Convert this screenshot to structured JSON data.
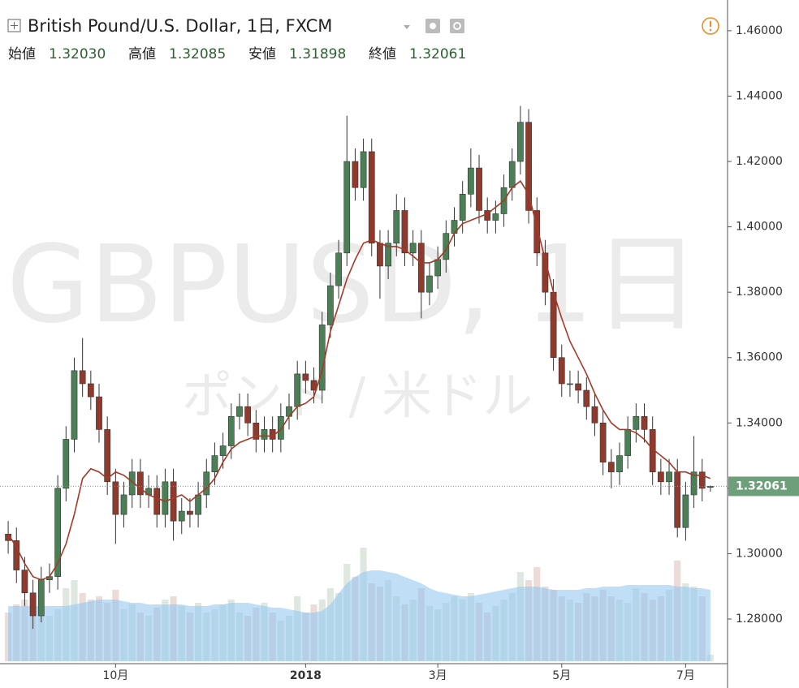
{
  "header": {
    "title": "British Pound/U.S. Dollar, 1日, FXCM",
    "stats": [
      {
        "label": "始値",
        "value": "1.32030"
      },
      {
        "label": "高値",
        "value": "1.32085"
      },
      {
        "label": "安値",
        "value": "1.31898"
      },
      {
        "label": "終値",
        "value": "1.32061"
      }
    ]
  },
  "chart_data": {
    "type": "candlestick",
    "watermark": "GBPUSD, 1日",
    "watermark_sub": "ポンド / 米ドル",
    "up_color": "#4b7f55",
    "down_color": "#8f3a2c",
    "categories": [
      null,
      null,
      null,
      null,
      null,
      null,
      null,
      null,
      null,
      null,
      null,
      null,
      null,
      "10月",
      null,
      null,
      null,
      null,
      null,
      null,
      null,
      null,
      null,
      null,
      null,
      null,
      null,
      null,
      null,
      null,
      null,
      null,
      null,
      null,
      null,
      null,
      "2018",
      null,
      null,
      null,
      null,
      null,
      null,
      null,
      null,
      null,
      null,
      null,
      null,
      null,
      null,
      null,
      "3月",
      null,
      null,
      null,
      null,
      null,
      null,
      null,
      null,
      null,
      null,
      null,
      null,
      null,
      null,
      "5月",
      null,
      null,
      null,
      null,
      null,
      null,
      null,
      null,
      null,
      null,
      null,
      null,
      null,
      null,
      "7月",
      null,
      null,
      null
    ],
    "open": [
      1.306,
      1.304,
      1.295,
      1.288,
      1.281,
      1.292,
      1.293,
      1.32,
      1.335,
      1.356,
      1.352,
      1.348,
      1.338,
      1.322,
      1.312,
      1.318,
      1.325,
      1.318,
      1.32,
      1.312,
      1.322,
      1.31,
      1.313,
      1.312,
      1.318,
      1.325,
      1.33,
      1.333,
      1.342,
      1.345,
      1.34,
      1.335,
      1.338,
      1.335,
      1.342,
      1.345,
      1.355,
      1.353,
      1.35,
      1.37,
      1.382,
      1.392,
      1.42,
      1.412,
      1.423,
      1.395,
      1.388,
      1.395,
      1.405,
      1.392,
      1.395,
      1.38,
      1.385,
      1.39,
      1.398,
      1.402,
      1.41,
      1.418,
      1.405,
      1.402,
      1.404,
      1.412,
      1.42,
      1.432,
      1.405,
      1.392,
      1.38,
      1.36,
      1.352,
      1.352,
      1.35,
      1.345,
      1.34,
      1.328,
      1.325,
      1.33,
      1.338,
      1.342,
      1.338,
      1.325,
      1.322,
      1.325,
      1.308,
      1.318,
      1.325,
      1.3203
    ],
    "high": [
      1.31,
      1.308,
      1.299,
      1.292,
      1.296,
      1.297,
      1.324,
      1.339,
      1.36,
      1.366,
      1.356,
      1.352,
      1.342,
      1.326,
      1.322,
      1.329,
      1.329,
      1.324,
      1.324,
      1.326,
      1.326,
      1.317,
      1.317,
      1.322,
      1.329,
      1.334,
      1.337,
      1.346,
      1.349,
      1.349,
      1.344,
      1.342,
      1.342,
      1.346,
      1.349,
      1.359,
      1.359,
      1.357,
      1.374,
      1.386,
      1.396,
      1.434,
      1.424,
      1.427,
      1.427,
      1.399,
      1.399,
      1.41,
      1.409,
      1.399,
      1.399,
      1.389,
      1.394,
      1.402,
      1.406,
      1.414,
      1.424,
      1.422,
      1.409,
      1.408,
      1.416,
      1.424,
      1.437,
      1.436,
      1.409,
      1.396,
      1.384,
      1.364,
      1.356,
      1.356,
      1.354,
      1.349,
      1.344,
      1.332,
      1.334,
      1.342,
      1.346,
      1.346,
      1.342,
      1.329,
      1.329,
      1.329,
      1.322,
      1.336,
      1.329,
      1.32085
    ],
    "low": [
      1.3,
      1.291,
      1.284,
      1.277,
      1.279,
      1.288,
      1.289,
      1.316,
      1.331,
      1.348,
      1.344,
      1.334,
      1.318,
      1.303,
      1.308,
      1.314,
      1.314,
      1.314,
      1.308,
      1.308,
      1.304,
      1.306,
      1.308,
      1.308,
      1.314,
      1.321,
      1.326,
      1.329,
      1.338,
      1.336,
      1.331,
      1.331,
      1.331,
      1.331,
      1.338,
      1.341,
      1.349,
      1.346,
      1.346,
      1.366,
      1.378,
      1.388,
      1.408,
      1.408,
      1.391,
      1.378,
      1.384,
      1.391,
      1.388,
      1.388,
      1.372,
      1.376,
      1.381,
      1.386,
      1.394,
      1.398,
      1.406,
      1.401,
      1.398,
      1.398,
      1.4,
      1.408,
      1.416,
      1.401,
      1.388,
      1.376,
      1.356,
      1.348,
      1.348,
      1.346,
      1.341,
      1.336,
      1.324,
      1.32,
      1.321,
      1.326,
      1.334,
      1.334,
      1.321,
      1.318,
      1.318,
      1.305,
      1.304,
      1.314,
      1.316,
      1.31898
    ],
    "close": [
      1.304,
      1.295,
      1.288,
      1.281,
      1.292,
      1.293,
      1.32,
      1.335,
      1.356,
      1.352,
      1.348,
      1.338,
      1.322,
      1.312,
      1.318,
      1.325,
      1.318,
      1.32,
      1.312,
      1.322,
      1.31,
      1.313,
      1.312,
      1.318,
      1.325,
      1.33,
      1.333,
      1.342,
      1.345,
      1.34,
      1.335,
      1.338,
      1.335,
      1.342,
      1.345,
      1.355,
      1.353,
      1.35,
      1.37,
      1.382,
      1.392,
      1.42,
      1.412,
      1.423,
      1.395,
      1.388,
      1.395,
      1.405,
      1.392,
      1.395,
      1.38,
      1.385,
      1.39,
      1.398,
      1.402,
      1.41,
      1.418,
      1.405,
      1.402,
      1.404,
      1.412,
      1.42,
      1.432,
      1.405,
      1.392,
      1.38,
      1.36,
      1.352,
      1.352,
      1.35,
      1.345,
      1.34,
      1.328,
      1.325,
      1.33,
      1.338,
      1.342,
      1.338,
      1.325,
      1.322,
      1.325,
      1.308,
      1.318,
      1.325,
      1.32,
      1.32061
    ],
    "series": [
      {
        "color": "#a33a26",
        "values": [
          1.306,
          1.302,
          1.297,
          1.293,
          1.292,
          1.293,
          1.297,
          1.303,
          1.312,
          1.323,
          1.326,
          1.325,
          1.323,
          1.325,
          1.324,
          1.322,
          1.32,
          1.318,
          1.317,
          1.316,
          1.317,
          1.318,
          1.316,
          1.318,
          1.32,
          1.323,
          1.328,
          1.332,
          1.334,
          1.335,
          1.336,
          1.336,
          1.336,
          1.338,
          1.342,
          1.345,
          1.346,
          1.348,
          1.356,
          1.368,
          1.376,
          1.384,
          1.39,
          1.395,
          1.396,
          1.395,
          1.394,
          1.394,
          1.393,
          1.391,
          1.389,
          1.389,
          1.39,
          1.393,
          1.398,
          1.401,
          1.402,
          1.403,
          1.404,
          1.406,
          1.408,
          1.412,
          1.414,
          1.41,
          1.4,
          1.39,
          1.38,
          1.372,
          1.365,
          1.36,
          1.355,
          1.349,
          1.344,
          1.34,
          1.338,
          1.338,
          1.337,
          1.335,
          1.332,
          1.33,
          1.328,
          1.325,
          1.325,
          1.324,
          1.324,
          1.323
        ]
      }
    ],
    "volume": [
      30,
      35,
      38,
      40,
      36,
      28,
      32,
      45,
      50,
      42,
      38,
      40,
      36,
      44,
      32,
      35,
      30,
      28,
      33,
      38,
      40,
      34,
      30,
      36,
      30,
      32,
      35,
      38,
      30,
      28,
      33,
      36,
      30,
      25,
      28,
      40,
      30,
      35,
      38,
      45,
      42,
      60,
      52,
      70,
      48,
      46,
      50,
      40,
      35,
      38,
      45,
      34,
      32,
      36,
      40,
      38,
      42,
      36,
      30,
      34,
      38,
      42,
      55,
      50,
      58,
      46,
      44,
      40,
      38,
      36,
      42,
      40,
      44,
      40,
      38,
      36,
      45,
      42,
      38,
      40,
      44,
      62,
      48,
      46,
      40,
      4
    ],
    "volume_ma": [
      34,
      34,
      34,
      34,
      34,
      34,
      34,
      34,
      35,
      36,
      37,
      38,
      38,
      38,
      37,
      36,
      36,
      35,
      35,
      35,
      35,
      35,
      34,
      34,
      34,
      35,
      35,
      36,
      36,
      36,
      35,
      34,
      33,
      33,
      32,
      31,
      30,
      30,
      31,
      35,
      42,
      48,
      52,
      55,
      56,
      56,
      55,
      54,
      52,
      50,
      48,
      45,
      43,
      42,
      41,
      40,
      40,
      41,
      42,
      43,
      44,
      45,
      46,
      46,
      46,
      45,
      44,
      44,
      44,
      44,
      45,
      45,
      46,
      46,
      46,
      47,
      47,
      47,
      47,
      47,
      47,
      46,
      46,
      45,
      45,
      44
    ],
    "volume_lim": [
      0,
      100
    ],
    "volume_ma_color": "#8cc4f0",
    "ylim": [
      1.2671,
      1.4694
    ],
    "yticks": [
      {
        "value": 1.28,
        "label": "1.28000"
      },
      {
        "value": 1.3,
        "label": "1.30000"
      },
      {
        "value": 1.32,
        "label": "1.32000"
      },
      {
        "value": 1.34,
        "label": "1.34000"
      },
      {
        "value": 1.36,
        "label": "1.36000"
      },
      {
        "value": 1.38,
        "label": "1.38000"
      },
      {
        "value": 1.4,
        "label": "1.40000"
      },
      {
        "value": 1.42,
        "label": "1.42000"
      },
      {
        "value": 1.44,
        "label": "1.44000"
      },
      {
        "value": 1.46,
        "label": "1.46000"
      }
    ],
    "last_price": 1.32061,
    "last_price_label": "1.32061",
    "last_color": "#6e9f7b",
    "grid": false
  }
}
